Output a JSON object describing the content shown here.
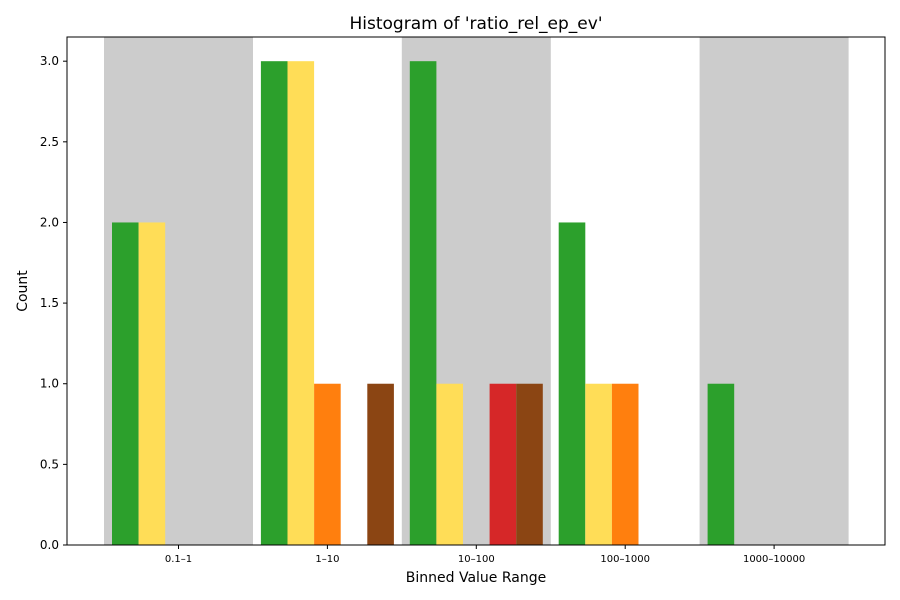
{
  "chart_data": {
    "type": "bar",
    "title": "Histogram of 'ratio_rel_ep_ev'",
    "xlabel": "Binned Value Range",
    "ylabel": "Count",
    "categories": [
      "0.1–1",
      "1–10",
      "10–100",
      "100–1000",
      "1000–10000"
    ],
    "ylim": [
      0,
      3.15
    ],
    "yticks": [
      "0.0",
      "0.5",
      "1.0",
      "1.5",
      "2.0",
      "2.5",
      "3.0"
    ],
    "shaded_bins": [
      0,
      2,
      4
    ],
    "shade_color": "#cccccc",
    "grid": false,
    "legend": "none",
    "series": [
      {
        "color": "#2ca02c",
        "values": [
          2,
          3,
          3,
          2,
          1
        ]
      },
      {
        "color": "#ffdd57",
        "values": [
          2,
          3,
          1,
          1,
          0
        ]
      },
      {
        "color": "#ff7f0e",
        "values": [
          0,
          1,
          0,
          1,
          0
        ]
      },
      {
        "color": "#d62728",
        "values": [
          0,
          0,
          1,
          0,
          0
        ]
      },
      {
        "color": "#8b4513",
        "values": [
          0,
          1,
          1,
          0,
          0
        ]
      }
    ]
  }
}
